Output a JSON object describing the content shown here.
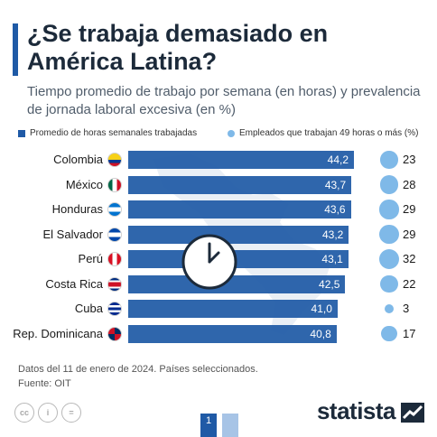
{
  "header": {
    "title": "¿Se trabaja demasiado en América Latina?",
    "subtitle": "Tiempo promedio de trabajo por semana (en horas) y prevalencia de jornada laboral excesiva (en %)"
  },
  "legend": {
    "bars_label": "Promedio de horas semanales trabajadas",
    "bubbles_label": "Empleados que trabajan 49 horas o más (%)"
  },
  "colors": {
    "bar": "#1f5aa6",
    "bubble": "#7fb9e8",
    "title": "#1c2a3a"
  },
  "chart_data": {
    "type": "bar",
    "orientation": "horizontal",
    "categories": [
      "Colombia",
      "México",
      "Honduras",
      "El Salvador",
      "Perú",
      "Costa Rica",
      "Cuba",
      "Rep. Dominicana"
    ],
    "series": [
      {
        "name": "Promedio de horas semanales trabajadas",
        "values": [
          44.2,
          43.7,
          43.6,
          43.2,
          43.1,
          42.5,
          41.0,
          40.8
        ],
        "labels": [
          "44,2",
          "43,7",
          "43,6",
          "43,2",
          "43,1",
          "42,5",
          "41,0",
          "40,8"
        ]
      },
      {
        "name": "Empleados que trabajan 49 horas o más (%)",
        "values": [
          23,
          28,
          29,
          29,
          32,
          22,
          3,
          17
        ],
        "labels": [
          "23",
          "28",
          "29",
          "29",
          "32",
          "22",
          "3",
          "17"
        ]
      }
    ],
    "flags": [
      "colombia-flag-icon",
      "mexico-flag-icon",
      "honduras-flag-icon",
      "el-salvador-flag-icon",
      "peru-flag-icon",
      "costa-rica-flag-icon",
      "cuba-flag-icon",
      "dominican-republic-flag-icon"
    ],
    "legend_position": "top",
    "grid": false
  },
  "footer": {
    "note": "Datos del 11 de enero de 2024. Países seleccionados.",
    "source": "Fuente: OIT"
  },
  "brand": {
    "name": "statista"
  },
  "pager": {
    "current": "1"
  }
}
